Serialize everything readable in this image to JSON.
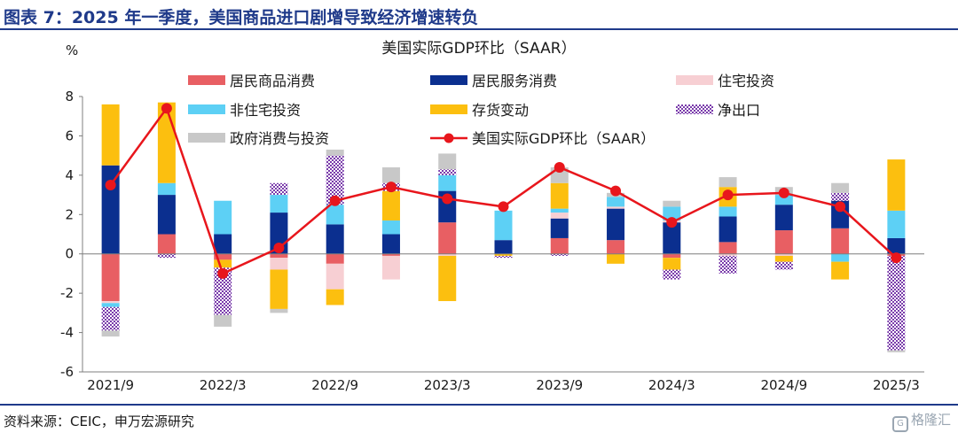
{
  "header": {
    "title": "图表 7：2025 年一季度，美国商品进口剧增导致经济增速转负"
  },
  "footer": {
    "source": "资料来源：CEIC，申万宏源研究",
    "watermark": "格隆汇"
  },
  "chart_data": {
    "type": "bar",
    "title": "美国实际GDP环比（SAAR）",
    "ylabel": "%",
    "ylim": [
      -6,
      8
    ],
    "yticks": [
      "8",
      "6",
      "4",
      "2",
      "0",
      "-2",
      "-4",
      "-6"
    ],
    "stacked": true,
    "categories": [
      "2021/9",
      "2021/12",
      "2022/3",
      "2022/6",
      "2022/9",
      "2022/12",
      "2023/3",
      "2023/6",
      "2023/9",
      "2023/12",
      "2024/3",
      "2024/6",
      "2024/9",
      "2024/12",
      "2025/3"
    ],
    "xtick_labels": [
      "2021/9",
      "2022/3",
      "2022/9",
      "2023/3",
      "2023/9",
      "2024/3",
      "2024/9",
      "2025/3"
    ],
    "series": [
      {
        "name": "居民商品消费",
        "color": "#e85f63",
        "pattern": "solid",
        "values": [
          -2.4,
          1.0,
          -0.3,
          -0.2,
          -0.5,
          -0.1,
          1.6,
          0.0,
          0.8,
          0.7,
          -0.2,
          0.6,
          1.2,
          1.3,
          -0.1
        ]
      },
      {
        "name": "居民服务消费",
        "color": "#0b2f8f",
        "pattern": "solid",
        "values": [
          4.5,
          2.0,
          1.0,
          2.1,
          1.5,
          1.0,
          1.6,
          0.7,
          1.0,
          1.6,
          1.6,
          1.3,
          1.3,
          1.4,
          0.8
        ]
      },
      {
        "name": "住宅投资",
        "color": "#f7cfd3",
        "pattern": "solid",
        "values": [
          -0.1,
          0.0,
          0.0,
          -0.6,
          -1.3,
          -1.2,
          -0.1,
          0.0,
          0.3,
          0.1,
          0.1,
          -0.1,
          -0.1,
          0.0,
          0.0
        ]
      },
      {
        "name": "非住宅投资",
        "color": "#5dd0f5",
        "pattern": "solid",
        "values": [
          -0.2,
          0.6,
          1.7,
          0.9,
          1.0,
          0.7,
          0.8,
          1.5,
          0.2,
          0.5,
          0.7,
          0.5,
          0.5,
          -0.4,
          1.4
        ]
      },
      {
        "name": "存货变动",
        "color": "#fcbf0f",
        "pattern": "solid",
        "values": [
          3.1,
          4.1,
          -0.4,
          -2.0,
          -0.8,
          1.5,
          -2.3,
          -0.1,
          1.3,
          -0.5,
          -0.6,
          1.0,
          -0.3,
          -0.9,
          2.6
        ]
      },
      {
        "name": "净出口",
        "color": "#7a3cab",
        "pattern": "hatch",
        "values": [
          -1.2,
          -0.2,
          -2.4,
          0.6,
          2.5,
          0.4,
          0.3,
          -0.1,
          -0.1,
          0.0,
          -0.5,
          -0.9,
          -0.4,
          0.4,
          -4.8
        ]
      },
      {
        "name": "政府消费与投资",
        "color": "#c8c8c8",
        "pattern": "solid",
        "values": [
          -0.3,
          0.0,
          -0.6,
          -0.2,
          0.3,
          0.8,
          0.8,
          0.0,
          0.8,
          0.2,
          0.3,
          0.5,
          0.4,
          0.5,
          -0.1
        ]
      }
    ],
    "line": {
      "name": "美国实际GDP环比（SAAR）",
      "color": "#e8161c",
      "values": [
        3.5,
        7.4,
        -1.0,
        0.3,
        2.7,
        3.4,
        2.8,
        2.4,
        4.4,
        3.2,
        1.6,
        3.0,
        3.1,
        2.4,
        -0.2
      ]
    }
  }
}
